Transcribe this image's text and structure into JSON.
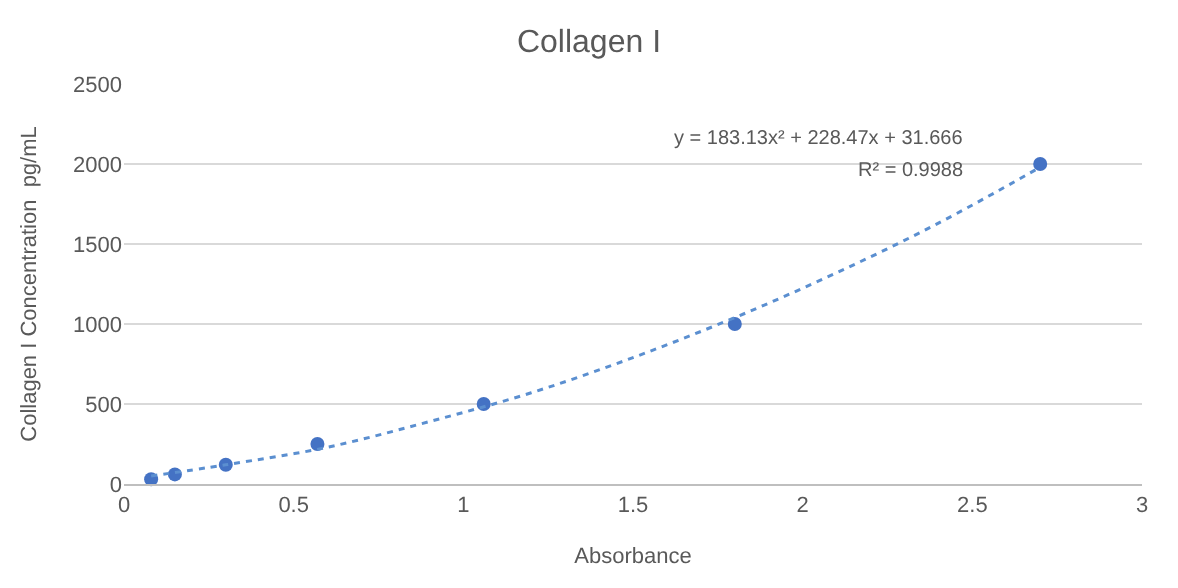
{
  "chart_data": {
    "type": "scatter",
    "title": "Collagen I",
    "xlabel": "Absorbance",
    "ylabel": "Collagen I Concentration  pg/mL",
    "annotations": [
      "y = 183.13x² + 228.47x + 31.666",
      "R² = 0.9988"
    ],
    "series": [
      {
        "color": "#4472c4",
        "marker": "circle",
        "x": [
          0.08,
          0.15,
          0.3,
          0.57,
          1.06,
          1.8,
          2.7
        ],
        "values": [
          30,
          60,
          120,
          250,
          500,
          1000,
          2000
        ]
      },
      {
        "type": "line",
        "color": "#5b8fd0",
        "line_style": "dotted",
        "marker": "none",
        "x": [
          0.08,
          0.3,
          0.6,
          0.9,
          1.2,
          1.5,
          1.8,
          2.1,
          2.4,
          2.7
        ],
        "values": [
          50,
          120,
          230,
          390,
          570,
          790,
          1040,
          1320,
          1630,
          1980
        ]
      }
    ],
    "xlim": [
      0,
      3
    ],
    "xticks": [
      0,
      0.5,
      1,
      1.5,
      2,
      2.5,
      3
    ],
    "ylim": [
      0,
      2500
    ],
    "yticks": [
      0,
      500,
      1000,
      1500,
      2000,
      2500
    ],
    "grid": "y"
  }
}
